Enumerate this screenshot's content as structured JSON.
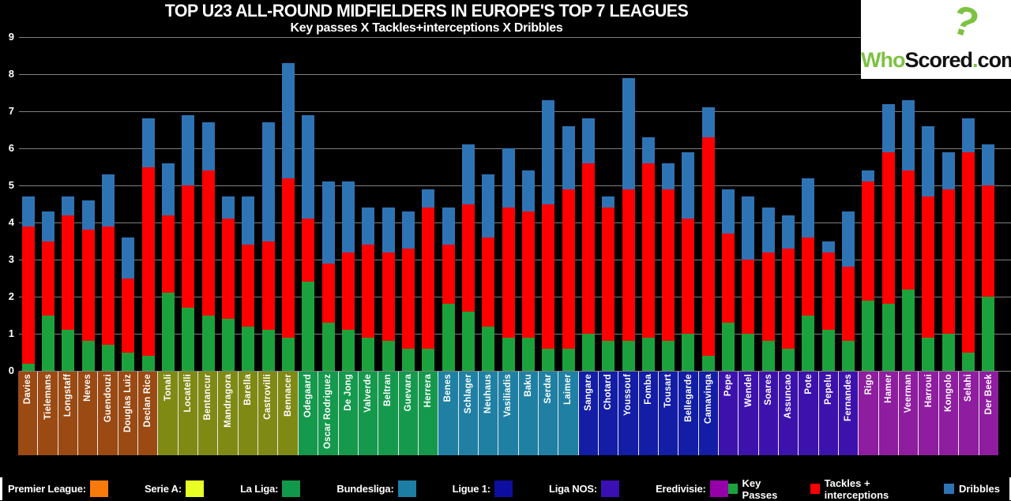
{
  "title": "TOP U23 ALL-ROUND MIDFIELDERS IN EUROPE'S TOP 7 LEAGUES",
  "subtitle": "Key passes X Tackles+interceptions X Dribbles",
  "logo": {
    "who": "Who",
    "scored": "Scored",
    "dot": ".",
    "com": "com",
    "question_mark": "?"
  },
  "chart_data": {
    "type": "bar",
    "stacked": true,
    "ylim": [
      0,
      9
    ],
    "yticks": [
      0,
      1,
      2,
      3,
      4,
      5,
      6,
      7,
      8,
      9
    ],
    "grid": true,
    "series": [
      {
        "name": "Key Passes",
        "color": "#1CA23C"
      },
      {
        "name": "Tackles + interceptions",
        "color": "#FE0000"
      },
      {
        "name": "Dribbles",
        "color": "#2E74B5"
      }
    ],
    "leagues": [
      {
        "name": "Premier League",
        "legend_label": "Premier League:",
        "swatch_color": "#F87A0B",
        "label_bg": "#9A4A12"
      },
      {
        "name": "Serie A",
        "legend_label": "Serie A:",
        "swatch_color": "#E7FF25",
        "label_bg": "#7F8A15"
      },
      {
        "name": "La Liga",
        "legend_label": "La Liga:",
        "swatch_color": "#12984A",
        "label_bg": "#15994D"
      },
      {
        "name": "Bundesliga",
        "legend_label": "Bundesliga:",
        "swatch_color": "#1C7EA2",
        "label_bg": "#1F80A3"
      },
      {
        "name": "Ligue 1",
        "legend_label": "Ligue 1:",
        "swatch_color": "#0D0DA0",
        "label_bg": "#131DA5"
      },
      {
        "name": "Liga NOS",
        "legend_label": "Liga NOS:",
        "swatch_color": "#3A10B5",
        "label_bg": "#3D12AC"
      },
      {
        "name": "Eredivisie",
        "legend_label": "Eredivisie:",
        "swatch_color": "#9500A8",
        "label_bg": "#8E1D9F"
      }
    ],
    "players": [
      {
        "name": "Davies",
        "league": "Premier League",
        "values": [
          0.2,
          3.7,
          0.8
        ]
      },
      {
        "name": "Tielemans",
        "league": "Premier League",
        "values": [
          1.5,
          2.0,
          0.8
        ]
      },
      {
        "name": "Longstaff",
        "league": "Premier League",
        "values": [
          1.1,
          3.1,
          0.5
        ]
      },
      {
        "name": "Neves",
        "league": "Premier League",
        "values": [
          0.8,
          3.0,
          0.8
        ]
      },
      {
        "name": "Guendouzi",
        "league": "Premier League",
        "values": [
          0.7,
          3.2,
          1.4
        ]
      },
      {
        "name": "Douglas Luiz",
        "league": "Premier League",
        "values": [
          0.5,
          2.0,
          1.1
        ]
      },
      {
        "name": "Declan Rice",
        "league": "Premier League",
        "values": [
          0.4,
          5.1,
          1.3
        ]
      },
      {
        "name": "Tonali",
        "league": "Serie A",
        "values": [
          2.1,
          2.1,
          1.4
        ]
      },
      {
        "name": "Locatelli",
        "league": "Serie A",
        "values": [
          1.7,
          3.3,
          1.9
        ]
      },
      {
        "name": "Bentancur",
        "league": "Serie A",
        "values": [
          1.5,
          3.9,
          1.3
        ]
      },
      {
        "name": "Mandragora",
        "league": "Serie A",
        "values": [
          1.4,
          2.7,
          0.6
        ]
      },
      {
        "name": "Barella",
        "league": "Serie A",
        "values": [
          1.2,
          2.2,
          1.3
        ]
      },
      {
        "name": "Castrovilli",
        "league": "Serie A",
        "values": [
          1.1,
          2.4,
          3.2
        ]
      },
      {
        "name": "Bennacer",
        "league": "Serie A",
        "values": [
          0.9,
          4.3,
          3.1
        ]
      },
      {
        "name": "Odegaard",
        "league": "La Liga",
        "values": [
          2.4,
          1.7,
          2.8
        ]
      },
      {
        "name": "Oscar Rodriguez",
        "league": "La Liga",
        "values": [
          1.3,
          1.6,
          2.2
        ]
      },
      {
        "name": "De Jong",
        "league": "La Liga",
        "values": [
          1.1,
          2.1,
          1.9
        ]
      },
      {
        "name": "Valverde",
        "league": "La Liga",
        "values": [
          0.9,
          2.5,
          1.0
        ]
      },
      {
        "name": "Beltran",
        "league": "La Liga",
        "values": [
          0.8,
          2.4,
          1.2
        ]
      },
      {
        "name": "Guevara",
        "league": "La Liga",
        "values": [
          0.6,
          2.7,
          1.0
        ]
      },
      {
        "name": "Herrera",
        "league": "La Liga",
        "values": [
          0.6,
          3.8,
          0.5
        ]
      },
      {
        "name": "Benes",
        "league": "Bundesliga",
        "values": [
          1.8,
          1.6,
          1.0
        ]
      },
      {
        "name": "Schlager",
        "league": "Bundesliga",
        "values": [
          1.6,
          2.9,
          1.6
        ]
      },
      {
        "name": "Neuhaus",
        "league": "Bundesliga",
        "values": [
          1.2,
          2.4,
          1.7
        ]
      },
      {
        "name": "Vasiliadis",
        "league": "Bundesliga",
        "values": [
          0.9,
          3.5,
          1.6
        ]
      },
      {
        "name": "Baku",
        "league": "Bundesliga",
        "values": [
          0.9,
          3.4,
          1.1
        ]
      },
      {
        "name": "Serdar",
        "league": "Bundesliga",
        "values": [
          0.6,
          3.9,
          2.8
        ]
      },
      {
        "name": "Laimer",
        "league": "Bundesliga",
        "values": [
          0.6,
          4.3,
          1.7
        ]
      },
      {
        "name": "Sangare",
        "league": "Ligue 1",
        "values": [
          1.0,
          4.6,
          1.2
        ]
      },
      {
        "name": "Chotard",
        "league": "Ligue 1",
        "values": [
          0.8,
          3.6,
          0.3
        ]
      },
      {
        "name": "Youssouf",
        "league": "Ligue 1",
        "values": [
          0.8,
          4.1,
          3.0
        ]
      },
      {
        "name": "Fomba",
        "league": "Ligue 1",
        "values": [
          0.9,
          4.7,
          0.7
        ]
      },
      {
        "name": "Tousart",
        "league": "Ligue 1",
        "values": [
          0.8,
          4.1,
          0.7
        ]
      },
      {
        "name": "Bellegarde",
        "league": "Ligue 1",
        "values": [
          1.0,
          3.1,
          1.8
        ]
      },
      {
        "name": "Camavinga",
        "league": "Ligue 1",
        "values": [
          0.4,
          5.9,
          0.8
        ]
      },
      {
        "name": "Pepe",
        "league": "Liga NOS",
        "values": [
          1.3,
          2.4,
          1.2
        ]
      },
      {
        "name": "Wendel",
        "league": "Liga NOS",
        "values": [
          1.0,
          2.0,
          1.7
        ]
      },
      {
        "name": "Soares",
        "league": "Liga NOS",
        "values": [
          0.8,
          2.4,
          1.2
        ]
      },
      {
        "name": "Assuncao",
        "league": "Liga NOS",
        "values": [
          0.6,
          2.7,
          0.9
        ]
      },
      {
        "name": "Pote",
        "league": "Liga NOS",
        "values": [
          1.5,
          2.1,
          1.6
        ]
      },
      {
        "name": "Pepelu",
        "league": "Liga NOS",
        "values": [
          1.1,
          2.1,
          0.3
        ]
      },
      {
        "name": "Fernandes",
        "league": "Liga NOS",
        "values": [
          0.8,
          2.0,
          1.5
        ]
      },
      {
        "name": "Rigo",
        "league": "Eredivisie",
        "values": [
          1.9,
          3.2,
          0.3
        ]
      },
      {
        "name": "Hamer",
        "league": "Eredivisie",
        "values": [
          1.8,
          4.1,
          1.3
        ]
      },
      {
        "name": "Veerman",
        "league": "Eredivisie",
        "values": [
          2.2,
          3.2,
          1.9
        ]
      },
      {
        "name": "Harroui",
        "league": "Eredivisie",
        "values": [
          0.9,
          3.8,
          1.9
        ]
      },
      {
        "name": "Kongolo",
        "league": "Eredivisie",
        "values": [
          1.0,
          3.9,
          1.0
        ]
      },
      {
        "name": "Selahi",
        "league": "Eredivisie",
        "values": [
          0.5,
          5.4,
          0.9
        ]
      },
      {
        "name": "Der Beek",
        "league": "Eredivisie",
        "values": [
          2.0,
          3.0,
          1.1
        ]
      }
    ]
  }
}
